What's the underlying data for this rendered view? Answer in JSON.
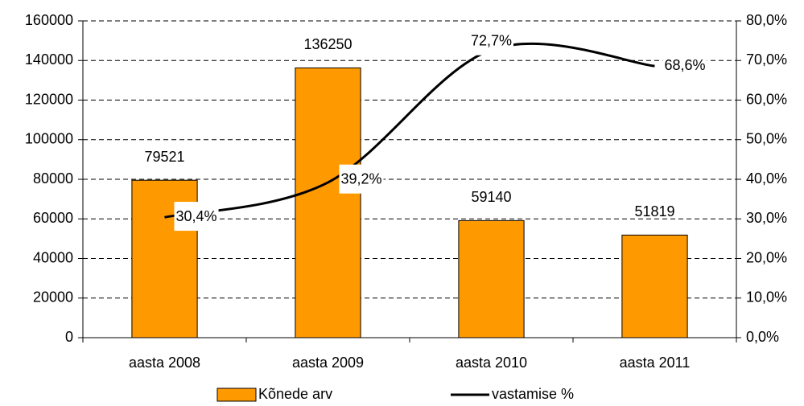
{
  "chart_data": {
    "type": "bar",
    "categories": [
      "aasta 2008",
      "aasta 2009",
      "aasta 2010",
      "aasta 2011"
    ],
    "series": [
      {
        "name": "Kõnede arv",
        "type": "bar",
        "color": "#ff9900",
        "values": [
          79521,
          136250,
          59140,
          51819
        ]
      },
      {
        "name": "vastamise %",
        "type": "line",
        "axis": "y2",
        "color": "#000000",
        "values": [
          30.4,
          39.2,
          72.7,
          68.6
        ],
        "value_labels": [
          "30,4%",
          "39,2%",
          "72,7%",
          "68,6%"
        ]
      }
    ],
    "ylim": [
      0,
      160000
    ],
    "yticks": [
      0,
      20000,
      40000,
      60000,
      80000,
      100000,
      120000,
      140000,
      160000
    ],
    "y2lim": [
      0,
      80
    ],
    "y2ticks": [
      {
        "value": 0,
        "label": "0,0%"
      },
      {
        "value": 10,
        "label": "10,0%"
      },
      {
        "value": 20,
        "label": "20,0%"
      },
      {
        "value": 30,
        "label": "30,0%"
      },
      {
        "value": 40,
        "label": "40,0%"
      },
      {
        "value": 50,
        "label": "50,0%"
      },
      {
        "value": 60,
        "label": "60,0%"
      },
      {
        "value": 70,
        "label": "70,0%"
      },
      {
        "value": 80,
        "label": "80,0%"
      }
    ],
    "grid": true,
    "legend": "bottom"
  }
}
